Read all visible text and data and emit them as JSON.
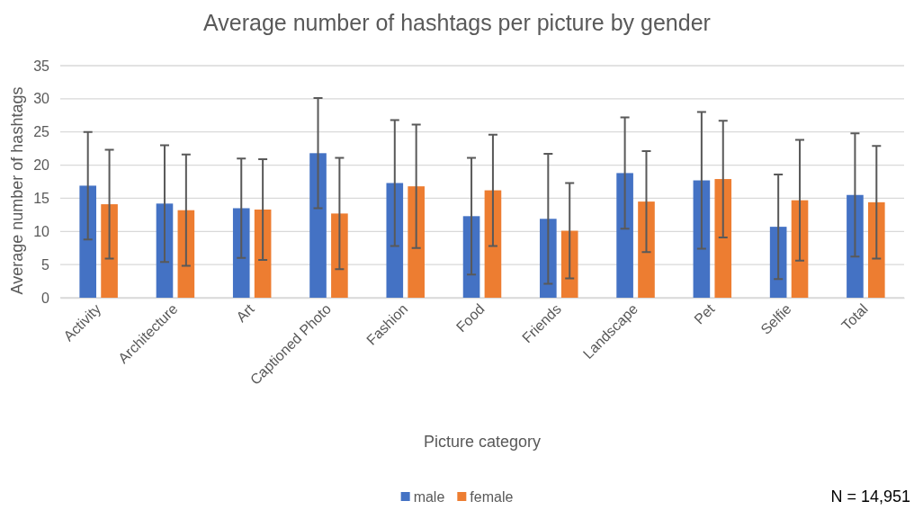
{
  "chart_data": {
    "type": "bar",
    "title": "Average number of hashtags per picture by gender",
    "xlabel": "Picture category",
    "ylabel": "Average number of hashtags",
    "categories": [
      "Activity",
      "Architecture",
      "Art",
      "Captioned Photo",
      "Fashion",
      "Food",
      "Friends",
      "Landscape",
      "Pet",
      "Selfie",
      "Total"
    ],
    "series": [
      {
        "name": "male",
        "color": "#4472c4",
        "values": [
          16.9,
          14.2,
          13.5,
          21.8,
          17.3,
          12.3,
          11.9,
          18.8,
          17.7,
          10.7,
          15.5
        ],
        "errors": [
          8.1,
          8.8,
          7.5,
          8.3,
          9.5,
          8.8,
          9.8,
          8.4,
          10.3,
          7.9,
          9.3
        ]
      },
      {
        "name": "female",
        "color": "#ed7d31",
        "values": [
          14.1,
          13.2,
          13.3,
          12.7,
          16.8,
          16.2,
          10.1,
          14.5,
          17.9,
          14.7,
          14.4
        ],
        "errors": [
          8.2,
          8.4,
          7.6,
          8.4,
          9.3,
          8.4,
          7.2,
          7.6,
          8.8,
          9.1,
          8.5
        ]
      }
    ],
    "ylim": [
      0,
      35
    ],
    "yticks": [
      0,
      5,
      10,
      15,
      20,
      25,
      30,
      35
    ],
    "grid": "y",
    "legend": "bottom",
    "annotations": [
      "N = 14,951"
    ]
  }
}
